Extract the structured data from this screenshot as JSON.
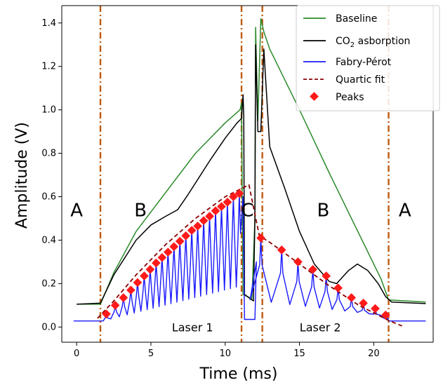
{
  "chart_data": {
    "type": "line",
    "xlabel": "Time (ms)",
    "ylabel": "Amplitude (V)",
    "xlim": [
      -1,
      24
    ],
    "ylim": [
      -0.07,
      1.48
    ],
    "x_ticks": [
      0,
      5,
      10,
      15,
      20
    ],
    "y_ticks": [
      0.0,
      0.2,
      0.4,
      0.6,
      0.8,
      1.0,
      1.2,
      1.4
    ],
    "x_tick_labels": [
      "0",
      "5",
      "10",
      "15",
      "20"
    ],
    "y_tick_labels": [
      "0.0",
      "0.2",
      "0.4",
      "0.6",
      "0.8",
      "1.0",
      "1.2",
      "1.4"
    ],
    "grid": false,
    "legend_position": "top-right",
    "legend": {
      "baseline": "Baseline",
      "co2_prefix": "CO",
      "co2_sub": "2",
      "co2_suffix": " asborption",
      "fabry": "Fabry-Pérot",
      "fit": "Quartic fit",
      "peaks": "Peaks"
    },
    "colors": {
      "baseline": "#2a8a2a",
      "co2": "#000000",
      "fabry": "#1a1aff",
      "fit": "#8b0000",
      "peaks": "#ff1a1a",
      "divider": "#c05a10"
    },
    "dividers": [
      1.6,
      11.1,
      12.5,
      21.0
    ],
    "region_labels": [
      {
        "text": "A",
        "x": 0.0,
        "y": 0.51
      },
      {
        "text": "B",
        "x": 4.3,
        "y": 0.51
      },
      {
        "text": "C",
        "x": 11.5,
        "y": 0.51
      },
      {
        "text": "B",
        "x": 16.6,
        "y": 0.51
      },
      {
        "text": "A",
        "x": 22.1,
        "y": 0.51
      }
    ],
    "laser_labels": [
      {
        "text": "Laser 1",
        "x": 7.8,
        "y": 0.0
      },
      {
        "text": "Laser 2",
        "x": 16.4,
        "y": 0.0
      }
    ],
    "series": {
      "baseline": [
        [
          0,
          0.105
        ],
        [
          1.6,
          0.105
        ],
        [
          2.5,
          0.25
        ],
        [
          4,
          0.44
        ],
        [
          6,
          0.62
        ],
        [
          8,
          0.8
        ],
        [
          10,
          0.94
        ],
        [
          11,
          1.0
        ],
        [
          11.1,
          1.03
        ],
        [
          11.2,
          0.15
        ],
        [
          11.8,
          0.13
        ],
        [
          12.0,
          0.5
        ],
        [
          12.05,
          1.38
        ],
        [
          12.2,
          0.95
        ],
        [
          12.4,
          1.42
        ],
        [
          12.6,
          1.36
        ],
        [
          13,
          1.28
        ],
        [
          15,
          1.0
        ],
        [
          17,
          0.71
        ],
        [
          19,
          0.43
        ],
        [
          20.5,
          0.22
        ],
        [
          21,
          0.125
        ],
        [
          23.5,
          0.115
        ]
      ],
      "co2": [
        [
          0,
          0.105
        ],
        [
          1.6,
          0.11
        ],
        [
          2.5,
          0.24
        ],
        [
          4,
          0.4
        ],
        [
          5,
          0.47
        ],
        [
          6,
          0.51
        ],
        [
          6.8,
          0.54
        ],
        [
          7.5,
          0.61
        ],
        [
          9,
          0.77
        ],
        [
          10,
          0.87
        ],
        [
          10.8,
          0.94
        ],
        [
          11.1,
          0.96
        ],
        [
          11.2,
          1.07
        ],
        [
          11.25,
          0.97
        ],
        [
          11.3,
          0.15
        ],
        [
          11.9,
          0.12
        ],
        [
          12.0,
          0.5
        ],
        [
          12.05,
          1.3
        ],
        [
          12.2,
          0.9
        ],
        [
          12.4,
          0.9
        ],
        [
          12.6,
          1.28
        ],
        [
          13,
          0.83
        ],
        [
          14,
          0.64
        ],
        [
          15,
          0.44
        ],
        [
          16,
          0.29
        ],
        [
          17,
          0.21
        ],
        [
          17.5,
          0.2
        ],
        [
          18.3,
          0.26
        ],
        [
          18.9,
          0.29
        ],
        [
          19.6,
          0.26
        ],
        [
          20.3,
          0.2
        ],
        [
          20.8,
          0.14
        ],
        [
          21.2,
          0.115
        ],
        [
          23.5,
          0.108
        ]
      ],
      "quartic_fit": [
        [
          1.4,
          0.04
        ],
        [
          2.5,
          0.12
        ],
        [
          4,
          0.24
        ],
        [
          6,
          0.38
        ],
        [
          8,
          0.5
        ],
        [
          10,
          0.6
        ],
        [
          11.6,
          0.655
        ],
        [
          12.3,
          0.42
        ],
        [
          13,
          0.39
        ],
        [
          14,
          0.34
        ],
        [
          15,
          0.29
        ],
        [
          16,
          0.24
        ],
        [
          17,
          0.19
        ],
        [
          18,
          0.145
        ],
        [
          19,
          0.1
        ],
        [
          20,
          0.065
        ],
        [
          21,
          0.03
        ],
        [
          21.9,
          0.005
        ]
      ],
      "peaks_x": [
        2.0,
        2.6,
        3.15,
        3.65,
        4.1,
        4.55,
        4.95,
        5.35,
        5.75,
        6.15,
        6.55,
        6.95,
        7.35,
        7.75,
        8.15,
        8.55,
        8.95,
        9.35,
        9.75,
        10.15,
        10.55,
        10.95,
        12.4,
        13.8,
        14.9,
        15.9,
        16.8,
        17.6,
        18.5,
        19.3,
        20.1,
        20.8
      ],
      "peaks_y": [
        0.06,
        0.1,
        0.135,
        0.17,
        0.205,
        0.235,
        0.265,
        0.295,
        0.32,
        0.345,
        0.37,
        0.395,
        0.42,
        0.445,
        0.465,
        0.49,
        0.51,
        0.535,
        0.555,
        0.575,
        0.6,
        0.615,
        0.41,
        0.355,
        0.3,
        0.265,
        0.235,
        0.18,
        0.135,
        0.11,
        0.085,
        0.055
      ],
      "fabry_min_laser1": [
        [
          1.6,
          0.025
        ],
        [
          11.1,
          0.19
        ]
      ],
      "fabry_flat": [
        [
          -0.2,
          0.028
        ],
        [
          1.6,
          0.028
        ],
        [
          21.0,
          0.028
        ],
        [
          23.5,
          0.028
        ]
      ]
    }
  }
}
